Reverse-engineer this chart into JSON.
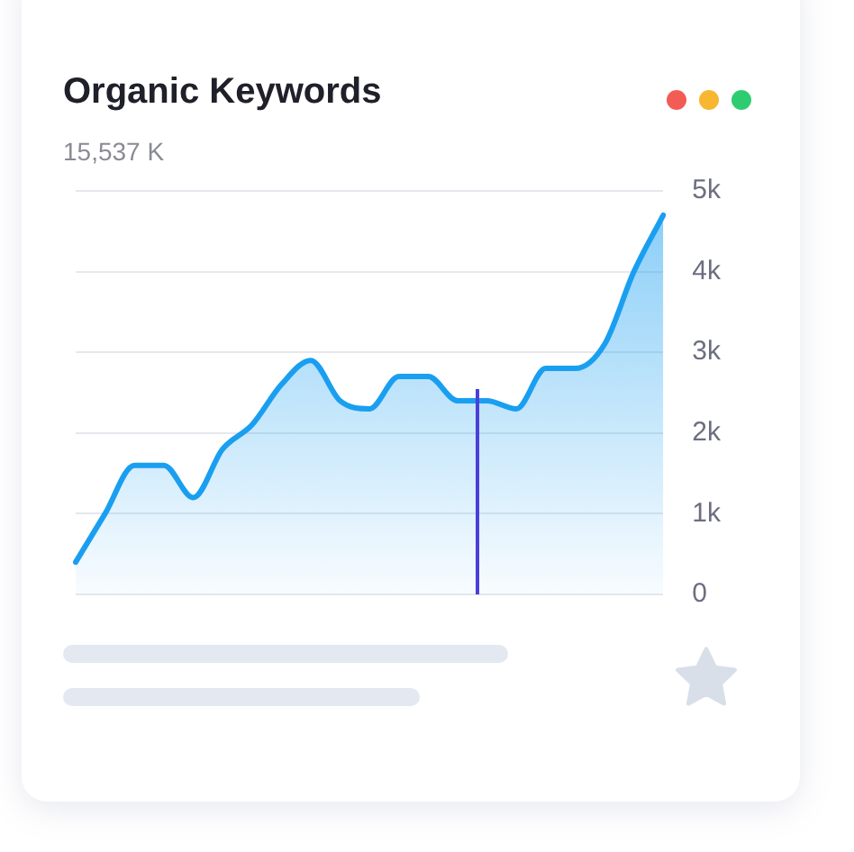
{
  "chart_data": {
    "type": "area",
    "title": "Organic Keywords",
    "subtitle": "15,537 K",
    "categories": [
      null,
      null,
      null,
      null,
      null,
      null,
      null,
      null,
      null,
      null,
      null,
      null,
      null,
      null,
      null,
      null,
      null,
      null,
      null,
      null,
      null
    ],
    "series": [
      {
        "color": "#1a9ff0",
        "values": [
          0.4,
          1.0,
          1.6,
          1.6,
          1.2,
          1.8,
          2.1,
          2.6,
          2.9,
          2.4,
          2.3,
          2.7,
          2.7,
          2.4,
          2.4,
          2.3,
          2.8,
          2.8,
          3.1,
          4.0,
          4.7
        ]
      }
    ],
    "ylim": [
      0,
      5
    ],
    "yticks": [
      0,
      {
        "value": 1,
        "label": "1k"
      },
      {
        "value": 2,
        "label": "2k"
      },
      {
        "value": 3,
        "label": "3k"
      },
      {
        "value": 4,
        "label": "4k"
      },
      {
        "value": 5,
        "label": "5k"
      }
    ],
    "grid": "y",
    "legend": false,
    "marker": "none",
    "tick_labels": "y"
  }
}
